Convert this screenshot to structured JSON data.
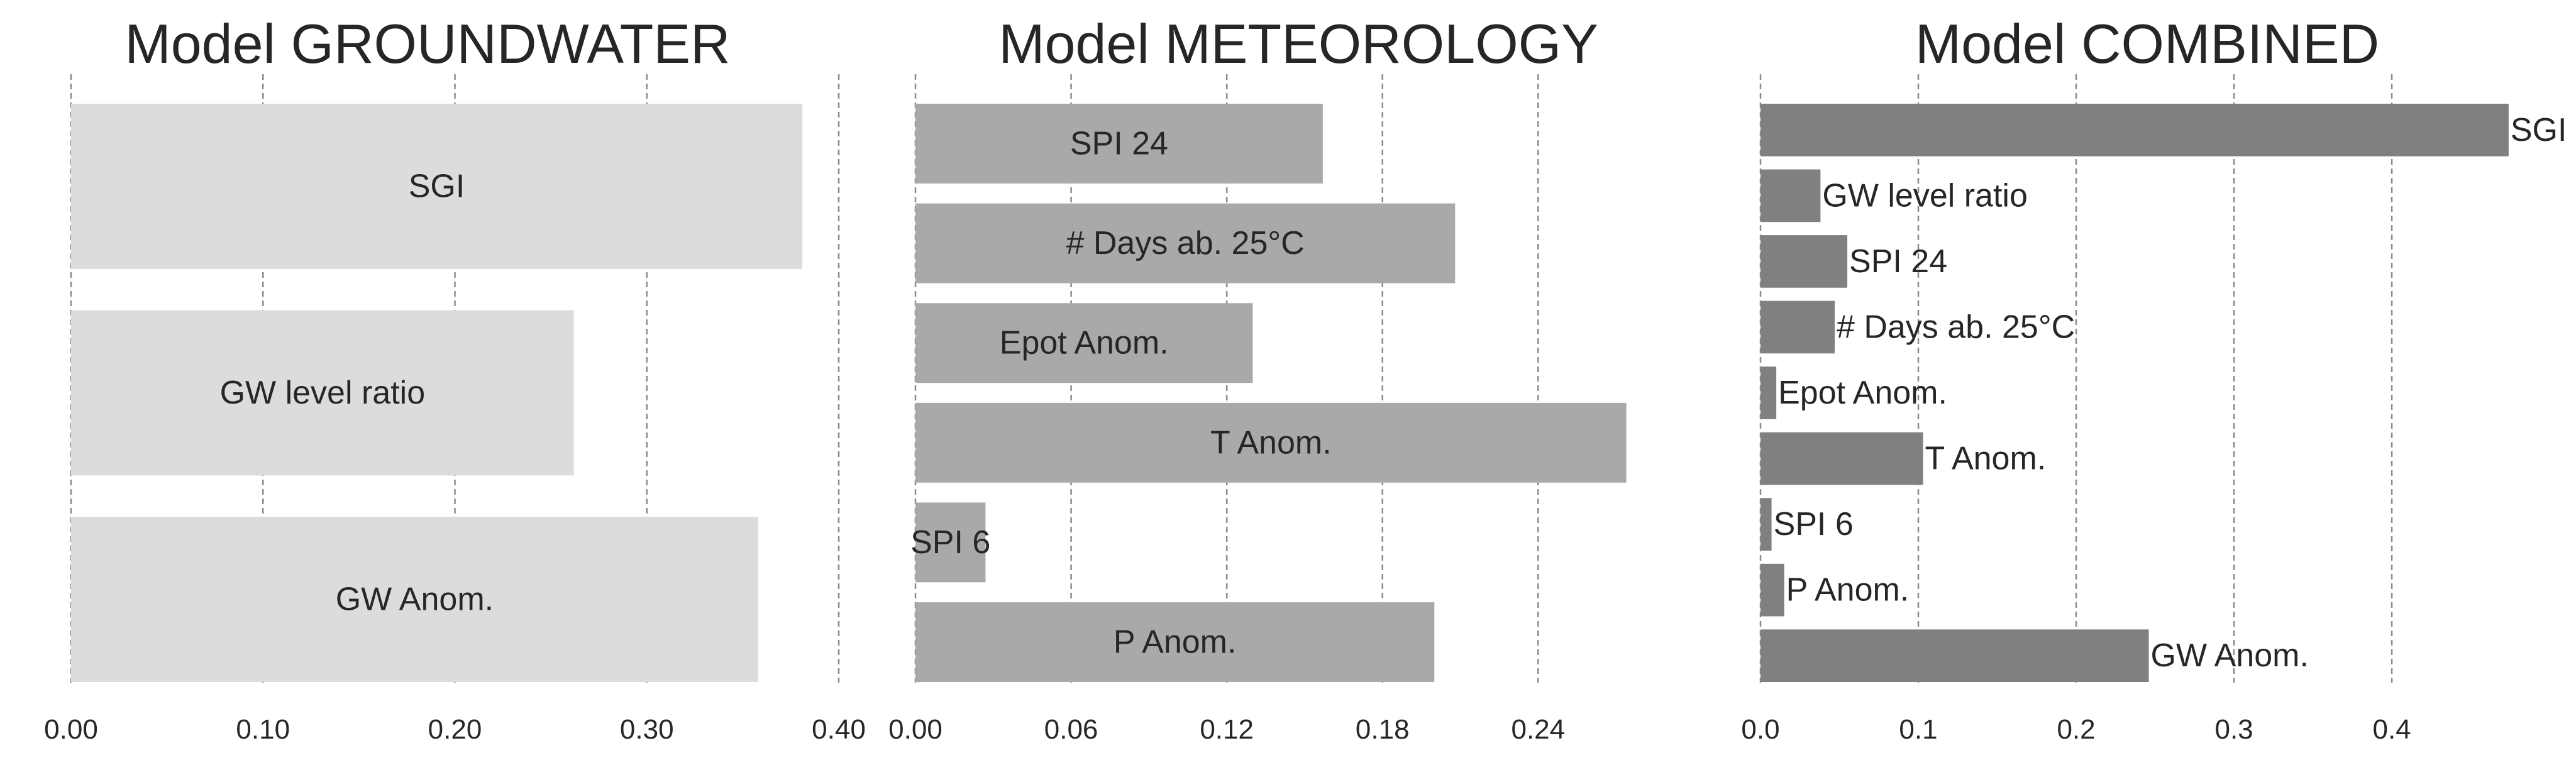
{
  "chart_data": [
    {
      "type": "bar",
      "orientation": "horizontal",
      "title": "Model GROUNDWATER",
      "xlabel": "",
      "ylabel": "",
      "categories": [
        "SGI",
        "GW level ratio",
        "GW Anom."
      ],
      "values": [
        0.381,
        0.262,
        0.358
      ],
      "xlim": [
        0.0,
        0.4
      ],
      "xticks": [
        "0.00",
        "0.10",
        "0.20",
        "0.30",
        "0.40"
      ],
      "xtick_values": [
        0.0,
        0.1,
        0.2,
        0.3,
        0.4
      ],
      "grid": "vertical dashed",
      "label_position": "inside-center",
      "color": "#dcdcdc"
    },
    {
      "type": "bar",
      "orientation": "horizontal",
      "title": "Model METEOROLOGY",
      "xlabel": "",
      "ylabel": "",
      "categories": [
        "SPI 24",
        "# Days ab. 25°C",
        "Epot Anom.",
        "T Anom.",
        "SPI 6",
        "P Anom."
      ],
      "values": [
        0.157,
        0.208,
        0.13,
        0.274,
        0.027,
        0.2
      ],
      "xlim": [
        0.0,
        0.285
      ],
      "xticks": [
        "0.00",
        "0.06",
        "0.12",
        "0.18",
        "0.24"
      ],
      "xtick_values": [
        0.0,
        0.06,
        0.12,
        0.18,
        0.24
      ],
      "grid": "vertical dashed",
      "label_position": "inside-center",
      "color": "#a9a9a9"
    },
    {
      "type": "bar",
      "orientation": "horizontal",
      "title": "Model COMBINED",
      "xlabel": "",
      "ylabel": "",
      "categories": [
        "SGI",
        "GW level ratio",
        "SPI 24",
        "# Days ab. 25°C",
        "Epot Anom.",
        "T Anom.",
        "SPI 6",
        "P Anom.",
        "GW Anom."
      ],
      "values": [
        0.474,
        0.038,
        0.055,
        0.047,
        0.01,
        0.103,
        0.007,
        0.015,
        0.246
      ],
      "xlim": [
        0.0,
        0.49
      ],
      "xticks": [
        "0.0",
        "0.1",
        "0.2",
        "0.3",
        "0.4"
      ],
      "xtick_values": [
        0.0,
        0.1,
        0.2,
        0.3,
        0.4
      ],
      "grid": "vertical dashed",
      "label_position": "after-bar",
      "color": "#808080"
    }
  ]
}
